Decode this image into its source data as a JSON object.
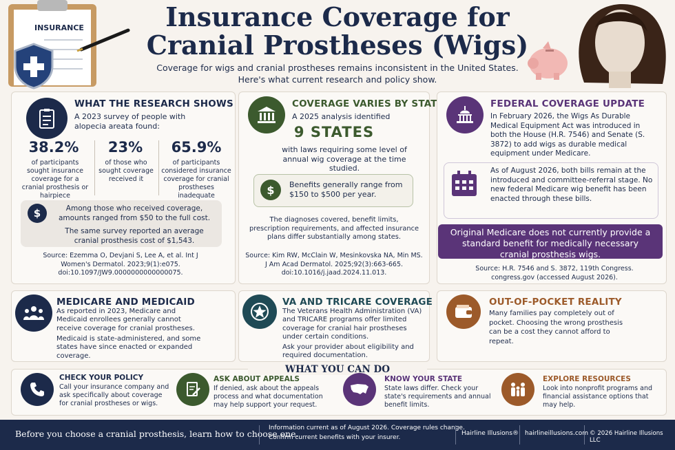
{
  "header": {
    "title_line1": "Insurance Coverage for",
    "title_line2": "Cranial Prostheses (Wigs)",
    "subtitle_line1": "Coverage for wigs and cranial prostheses remains inconsistent in the United States.",
    "subtitle_line2": "Here's what current research and policy show.",
    "clipboard_label": "INSURANCE"
  },
  "research": {
    "title": "WHAT THE RESEARCH SHOWS",
    "intro": "A 2023 survey of people with alopecia areata found:",
    "stats": [
      {
        "value": "38.2%",
        "desc": "of participants sought insurance coverage for a cranial prosthesis or hairpiece"
      },
      {
        "value": "23%",
        "desc": "of those who sought coverage received it"
      },
      {
        "value": "65.9%",
        "desc": "of participants considered insurance coverage for cranial prostheses inadequate"
      }
    ],
    "box_line1": "Among those who received coverage, amounts ranged from $50 to the full cost.",
    "box_line2": "The same survey reported an average cranial prosthesis cost of $1,543.",
    "source": "Source: Ezemma O, Devjani S, Lee A, et al. Int J Women's Dermatol. 2023;9(1):e075. doi:10.1097/JW9.0000000000000075."
  },
  "state": {
    "title": "COVERAGE VARIES BY STATE",
    "intro": "A 2025 analysis identified",
    "big": "9 STATES",
    "after": "with laws requiring some level of annual wig coverage at the time studied.",
    "benefit": "Benefits generally range from $150 to $500 per year.",
    "diff": "The diagnoses covered, benefit limits, prescription requirements, and affected insurance plans differ substantially among states.",
    "source": "Source: Kim RW, McClain W, Mesinkovska NA, Min MS. J Am Acad Dermatol. 2025;92(3):663-665. doi:10.1016/j.jaad.2024.11.013."
  },
  "federal": {
    "title": "FEDERAL COVERAGE UPDATE",
    "text1": "In February 2026, the Wigs As Durable Medical Equipment Act was introduced in both the House (H.R. 7546) and Senate (S. 3872) to add wigs as durable medical equipment under Medicare.",
    "text2": "As of August 2026, both bills remain at the introduced and committee-referral stage. No new federal Medicare wig benefit has been enacted through these bills.",
    "banner": "Original Medicare does not currently provide a standard benefit for medically necessary cranial prosthesis wigs.",
    "source": "Source: H.R. 7546 and S. 3872, 119th Congress. congress.gov (accessed August 2026)."
  },
  "medicare": {
    "title": "MEDICARE AND MEDICAID",
    "text1": "As reported in 2023, Medicare and Medicaid enrollees generally cannot receive coverage for cranial prostheses.",
    "text2": "Medicaid is state-administered, and some states have since enacted or expanded coverage."
  },
  "va": {
    "title": "VA AND TRICARE COVERAGE",
    "text1": "The Veterans Health Administration (VA) and TRICARE programs offer limited coverage for cranial hair prostheses under certain conditions.",
    "text2": "Ask your provider about eligibility and required documentation."
  },
  "oop": {
    "title": "OUT-OF-POCKET REALITY",
    "text": "Many families pay completely out of pocket. Choosing the wrong prosthesis can be a cost they cannot afford to repeat."
  },
  "actions": {
    "heading": "WHAT YOU CAN DO",
    "items": [
      {
        "title": "CHECK YOUR POLICY",
        "text": "Call your insurance company and ask specifically about coverage for cranial prostheses or wigs."
      },
      {
        "title": "ASK ABOUT APPEALS",
        "text": "If denied, ask about the appeals process and what documentation may help support your request."
      },
      {
        "title": "KNOW YOUR STATE",
        "text": "State laws differ. Check your state's requirements and annual benefit limits."
      },
      {
        "title": "EXPLORE RESOURCES",
        "text": "Look into nonprofit programs and financial assistance options that may help."
      }
    ]
  },
  "footer": {
    "tagline": "Before you choose a cranial prosthesis, learn how to choose one.",
    "notice_line1": "Information current as of August 2026.  Coverage rules change.",
    "notice_line2": "Confirm current benefits with your insurer.",
    "brand": "Hairline Illusions®",
    "site": "hairlineillusions.com",
    "copyright": "© 2026 Hairline Illusions LLC"
  },
  "colors": {
    "navy": "#1c2a4a",
    "green": "#3c5a2e",
    "purple": "#5a3478",
    "brown": "#9c5a2a",
    "background": "#f7f3ee"
  }
}
